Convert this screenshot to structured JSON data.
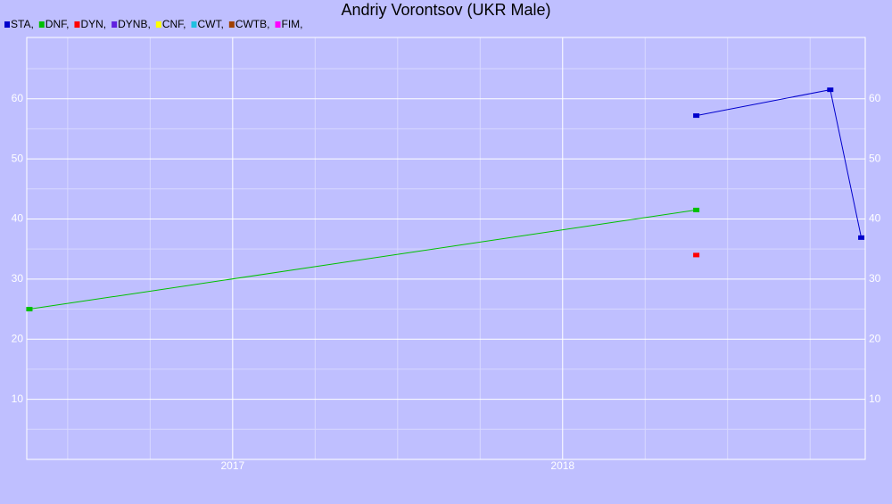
{
  "chart_data": {
    "type": "line",
    "title": "Andriy Vorontsov (UKR Male)",
    "series": [
      {
        "name": "STA,",
        "color": "#0000cc",
        "x": [
          2018.405,
          2018.811,
          2018.905
        ],
        "values": [
          57.2,
          61.5,
          36.9
        ]
      },
      {
        "name": "DNF,",
        "color": "#00c000",
        "x": [
          2016.384,
          2018.405
        ],
        "values": [
          25.0,
          41.5
        ]
      },
      {
        "name": "DYN,",
        "color": "#ff0000",
        "x": [
          2018.405
        ],
        "values": [
          34.0
        ]
      },
      {
        "name": "DYNB,",
        "color": "#6020e0",
        "x": [],
        "values": []
      },
      {
        "name": "CNF,",
        "color": "#ffff00",
        "x": [],
        "values": []
      },
      {
        "name": "CWT,",
        "color": "#20c0e0",
        "x": [],
        "values": []
      },
      {
        "name": "CWTB,",
        "color": "#a04000",
        "x": [],
        "values": []
      },
      {
        "name": "FIM,",
        "color": "#ff00ff",
        "x": [],
        "values": []
      }
    ],
    "xlim": [
      2016.376,
      2018.917
    ],
    "xticks": [
      2017,
      2018
    ],
    "minor_xticks": [
      2016.5,
      2016.75,
      2017.25,
      2017.5,
      2017.75,
      2018.25,
      2018.5,
      2018.75
    ],
    "ylim": [
      0,
      70.2
    ],
    "yticks": [
      10,
      20,
      30,
      40,
      50,
      60
    ],
    "minor_yticks": [
      5,
      15,
      25,
      35,
      45,
      55,
      65
    ],
    "grid": true,
    "legend": "top-left"
  }
}
